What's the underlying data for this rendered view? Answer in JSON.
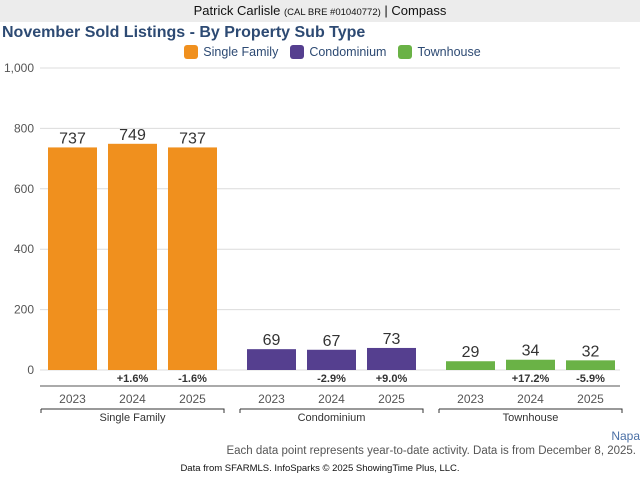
{
  "header": {
    "agent_name": "Patrick Carlisle",
    "license": "(CAL BRE #01040772)",
    "separator": "|",
    "brokerage": "Compass"
  },
  "region_label": "Napa",
  "note": "Each data point represents year-to-date activity. Data is from December 8, 2025.",
  "footer": "Data from SFARMLS. InfoSparks © 2025 ShowingTime Plus, LLC.",
  "chart_data": {
    "type": "bar",
    "title": "November Sold Listings - By Property Sub Type",
    "xlabel": "",
    "ylabel": "",
    "ylim": [
      0,
      1000
    ],
    "yticks": [
      0,
      200,
      400,
      600,
      800,
      1000
    ],
    "ytick_labels": [
      "0",
      "200",
      "400",
      "600",
      "800",
      "1,000"
    ],
    "grid": true,
    "legend_position": "top-center",
    "categories": [
      "2023",
      "2024",
      "2025"
    ],
    "groups": [
      {
        "name": "Single Family",
        "color": "#f0901e",
        "values": [
          737,
          749,
          737
        ],
        "value_labels": [
          "737",
          "749",
          "737"
        ],
        "pct_change": [
          "",
          "+1.6%",
          "-1.6%"
        ]
      },
      {
        "name": "Condominium",
        "color": "#553f8f",
        "values": [
          69,
          67,
          73
        ],
        "value_labels": [
          "69",
          "67",
          "73"
        ],
        "pct_change": [
          "",
          "-2.9%",
          "+9.0%"
        ]
      },
      {
        "name": "Townhouse",
        "color": "#6ab246",
        "values": [
          29,
          34,
          32
        ],
        "value_labels": [
          "29",
          "34",
          "32"
        ],
        "pct_change": [
          "",
          "+17.2%",
          "-5.9%"
        ]
      }
    ]
  }
}
